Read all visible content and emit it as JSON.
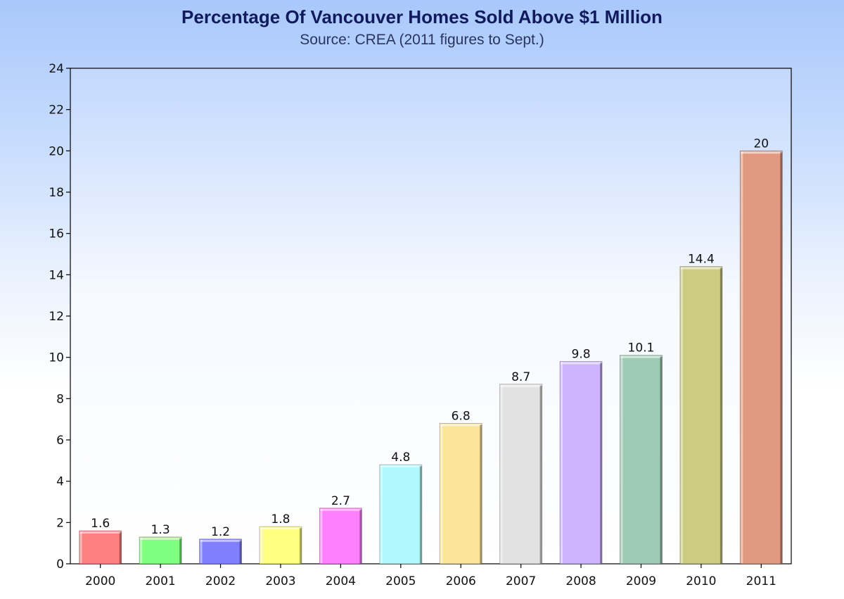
{
  "chart_data": {
    "type": "bar",
    "title": "Percentage Of Vancouver Homes Sold Above $1 Million",
    "subtitle": "Source: CREA (2011 figures to Sept.)",
    "xlabel": "",
    "ylabel": "",
    "categories": [
      "2000",
      "2001",
      "2002",
      "2003",
      "2004",
      "2005",
      "2006",
      "2007",
      "2008",
      "2009",
      "2010",
      "2011"
    ],
    "values": [
      1.6,
      1.3,
      1.2,
      1.8,
      2.7,
      4.8,
      6.8,
      8.7,
      9.8,
      10.1,
      14.4,
      20
    ],
    "value_labels": [
      "1.6",
      "1.3",
      "1.2",
      "1.8",
      "2.7",
      "4.8",
      "6.8",
      "8.7",
      "9.8",
      "10.1",
      "14.4",
      "20"
    ],
    "ylim": [
      0,
      24
    ],
    "yticks": [
      "0",
      "2",
      "4",
      "6",
      "8",
      "10",
      "12",
      "14",
      "16",
      "18",
      "20",
      "22",
      "24"
    ],
    "grid": false,
    "legend": "none",
    "bar_colors": [
      "#ff8080",
      "#80ff80",
      "#8080ff",
      "#ffff80",
      "#ff80ff",
      "#b0f8fb",
      "#fde49b",
      "#e2e2e2",
      "#cdb3fd",
      "#9dcbb3",
      "#cccc80",
      "#e0987f"
    ],
    "bar_top_colors": [
      "#ff8080",
      "#80ff80",
      "#8080ff",
      "#ffff80",
      "#ff80ff",
      "#b0f8fb",
      "#fde49b",
      "#e2e2e2",
      "#cdb3fd",
      "#9dcbb3",
      "#cccc80",
      "#d38b7b"
    ]
  }
}
